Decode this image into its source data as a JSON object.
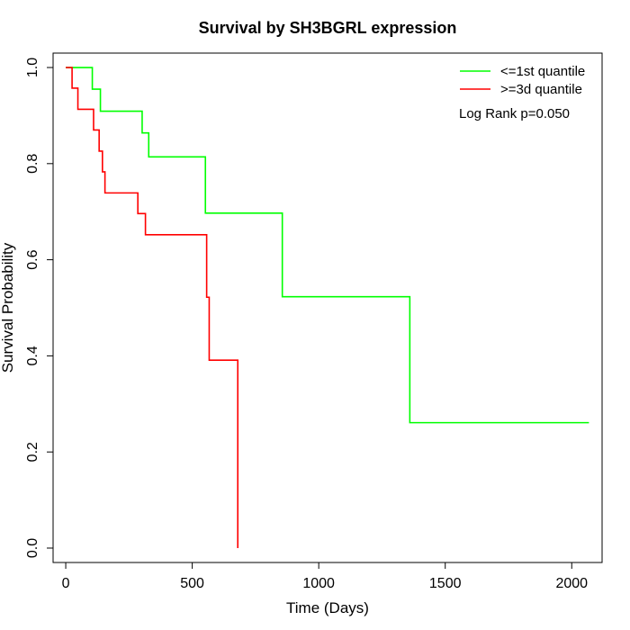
{
  "chart_data": {
    "type": "line",
    "title": "Survival by SH3BGRL expression",
    "xlabel": "Time (Days)",
    "ylabel": "Survival Probability",
    "xlim": [
      -50,
      2120
    ],
    "ylim": [
      -0.03,
      1.03
    ],
    "x_ticks": [
      0,
      500,
      1000,
      1500,
      2000
    ],
    "y_ticks": [
      0.0,
      0.2,
      0.4,
      0.6,
      0.8,
      1.0
    ],
    "x_tick_labels": [
      "0",
      "500",
      "1000",
      "1500",
      "2000"
    ],
    "y_tick_labels": [
      "0.0",
      "0.2",
      "0.4",
      "0.6",
      "0.8",
      "1.0"
    ],
    "legend_position": "top-right",
    "annotation": "Log Rank p=0.050",
    "series": [
      {
        "name": "<=1st quantile",
        "color": "#00ff00",
        "step": [
          [
            0,
            1.0
          ],
          [
            105,
            0.955
          ],
          [
            137,
            0.909
          ],
          [
            302,
            0.864
          ],
          [
            328,
            0.814
          ],
          [
            552,
            0.697
          ],
          [
            856,
            0.523
          ],
          [
            1360,
            0.261
          ],
          [
            2068,
            0.261
          ]
        ]
      },
      {
        "name": ">=3d quantile",
        "color": "#ff0000",
        "step": [
          [
            0,
            1.0
          ],
          [
            25,
            0.957
          ],
          [
            48,
            0.913
          ],
          [
            110,
            0.87
          ],
          [
            132,
            0.826
          ],
          [
            145,
            0.783
          ],
          [
            155,
            0.739
          ],
          [
            285,
            0.696
          ],
          [
            315,
            0.652
          ],
          [
            557,
            0.522
          ],
          [
            567,
            0.391
          ],
          [
            680,
            0.0
          ]
        ]
      }
    ]
  }
}
